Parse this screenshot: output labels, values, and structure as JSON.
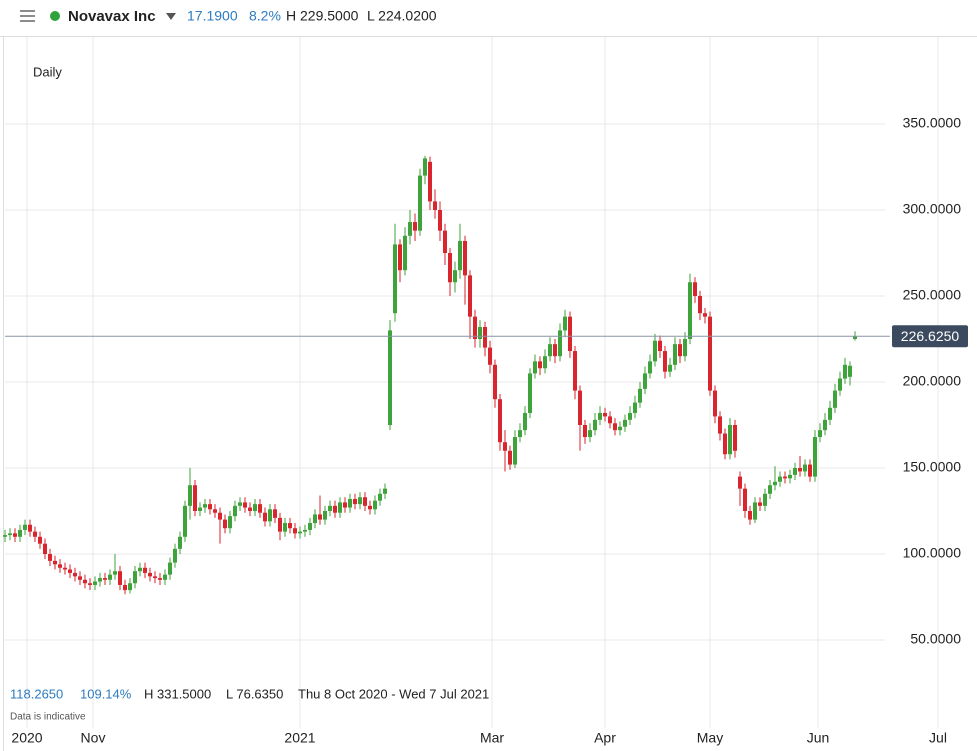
{
  "header": {
    "name": "Novavax Inc",
    "change": "17.1900",
    "change_pct": "8.2%",
    "high": "H 229.5000",
    "low": "L 224.0200"
  },
  "footer": {
    "period_change": "118.2650",
    "period_change_pct": "109.14%",
    "period_high": "H 331.5000",
    "period_low": "L 76.6350",
    "range": "Thu 8 Oct 2020 - Wed 7 Jul 2021",
    "note": "Data is indicative"
  },
  "chart_data": {
    "type": "candlestick",
    "interval": "Daily",
    "up_color": "#3ea33a",
    "down_color": "#d9262e",
    "ylim": [
      0,
      400
    ],
    "yticks": [
      {
        "value": 50,
        "label": "50.0000"
      },
      {
        "value": 100,
        "label": "100.0000"
      },
      {
        "value": 150,
        "label": "150.0000"
      },
      {
        "value": 200,
        "label": "200.0000"
      },
      {
        "value": 250,
        "label": "250.0000"
      },
      {
        "value": 300,
        "label": "300.0000"
      },
      {
        "value": 350,
        "label": "350.0000"
      }
    ],
    "xlim": [
      -1,
      194
    ],
    "xticks": [
      {
        "value": 4.4,
        "label": "2020"
      },
      {
        "value": 17.6,
        "label": "Nov"
      },
      {
        "value": 59,
        "label": "2021"
      },
      {
        "value": 97.4,
        "label": "Mar"
      },
      {
        "value": 120,
        "label": "Apr"
      },
      {
        "value": 141,
        "label": "May"
      },
      {
        "value": 162.6,
        "label": "Jun"
      },
      {
        "value": 186.6,
        "label": "Jul"
      }
    ],
    "last_price": 226.625,
    "last_price_label": "226.6250",
    "ohlc": [
      [
        110,
        114,
        107,
        111
      ],
      [
        111,
        115,
        108,
        112
      ],
      [
        112,
        115,
        107,
        110
      ],
      [
        110,
        117,
        107,
        114
      ],
      [
        114,
        120,
        111,
        117
      ],
      [
        117,
        120,
        110,
        113
      ],
      [
        113,
        116,
        107,
        110
      ],
      [
        110,
        113,
        103,
        106
      ],
      [
        106,
        109,
        97,
        100
      ],
      [
        100,
        103,
        93,
        96
      ],
      [
        96,
        99,
        91,
        94
      ],
      [
        94,
        97,
        89,
        92
      ],
      [
        92,
        95,
        88,
        91
      ],
      [
        91,
        94,
        86,
        89
      ],
      [
        89,
        92,
        84,
        87
      ],
      [
        87,
        90,
        82,
        85
      ],
      [
        85,
        88,
        80,
        83
      ],
      [
        83,
        86,
        79,
        82
      ],
      [
        82,
        87,
        79,
        84
      ],
      [
        84,
        89,
        81,
        86
      ],
      [
        86,
        89,
        82,
        85
      ],
      [
        85,
        91,
        82,
        88
      ],
      [
        88,
        100,
        85,
        90
      ],
      [
        90,
        93,
        79,
        82
      ],
      [
        82,
        85,
        76.635,
        79
      ],
      [
        79,
        86,
        77,
        83
      ],
      [
        83,
        93,
        80,
        90
      ],
      [
        90,
        95,
        87,
        92
      ],
      [
        92,
        95,
        86,
        89
      ],
      [
        89,
        92,
        84,
        87
      ],
      [
        87,
        90,
        83,
        86
      ],
      [
        86,
        89,
        82,
        85
      ],
      [
        85,
        91,
        82,
        88
      ],
      [
        88,
        98,
        85,
        95
      ],
      [
        95,
        106,
        92,
        103
      ],
      [
        103,
        113,
        100,
        110
      ],
      [
        110,
        131,
        107,
        128
      ],
      [
        128,
        150,
        120,
        140
      ],
      [
        140,
        143,
        122,
        125
      ],
      [
        125,
        130,
        122,
        127
      ],
      [
        127,
        132,
        124,
        129
      ],
      [
        129,
        132,
        123,
        126
      ],
      [
        126,
        129,
        121,
        124
      ],
      [
        124,
        127,
        106,
        120
      ],
      [
        120,
        123,
        112,
        115
      ],
      [
        115,
        125,
        112,
        122
      ],
      [
        122,
        131,
        119,
        128
      ],
      [
        128,
        133,
        125,
        130
      ],
      [
        130,
        133,
        124,
        127
      ],
      [
        127,
        130,
        122,
        125
      ],
      [
        125,
        132,
        122,
        129
      ],
      [
        129,
        132,
        121,
        124
      ],
      [
        124,
        127,
        116,
        119
      ],
      [
        119,
        129,
        116,
        126
      ],
      [
        126,
        129,
        118,
        121
      ],
      [
        121,
        124,
        108,
        113
      ],
      [
        113,
        121,
        110,
        118
      ],
      [
        118,
        121,
        112,
        115
      ],
      [
        115,
        118,
        109,
        112
      ],
      [
        112,
        116,
        109,
        113
      ],
      [
        113,
        117,
        110,
        114
      ],
      [
        114,
        121,
        111,
        118
      ],
      [
        118,
        126,
        115,
        123
      ],
      [
        123,
        134,
        117,
        120
      ],
      [
        120,
        128,
        117,
        125
      ],
      [
        125,
        131,
        122,
        128
      ],
      [
        128,
        131,
        121,
        124
      ],
      [
        124,
        133,
        121,
        130
      ],
      [
        130,
        133,
        124,
        127
      ],
      [
        127,
        135,
        124,
        132
      ],
      [
        132,
        135,
        126,
        129
      ],
      [
        129,
        136,
        126,
        133
      ],
      [
        133,
        136,
        125,
        128
      ],
      [
        128,
        131,
        123,
        126
      ],
      [
        126,
        134,
        123,
        131
      ],
      [
        131,
        138,
        128,
        135
      ],
      [
        135,
        141,
        132,
        138
      ],
      [
        175,
        236,
        172,
        230
      ],
      [
        240,
        292,
        235,
        280
      ],
      [
        280,
        283,
        258,
        265
      ],
      [
        265,
        290,
        262,
        285
      ],
      [
        285,
        300,
        280,
        293
      ],
      [
        293,
        298,
        282,
        288
      ],
      [
        288,
        324,
        285,
        320
      ],
      [
        320,
        331.5,
        315,
        330
      ],
      [
        328,
        331,
        300,
        305
      ],
      [
        305,
        312,
        295,
        300
      ],
      [
        300,
        305,
        282,
        288
      ],
      [
        288,
        292,
        268,
        275
      ],
      [
        275,
        278,
        250,
        258
      ],
      [
        258,
        270,
        252,
        265
      ],
      [
        265,
        292,
        260,
        282
      ],
      [
        282,
        285,
        245,
        262
      ],
      [
        262,
        265,
        225,
        238
      ],
      [
        238,
        242,
        220,
        225
      ],
      [
        225,
        236,
        220,
        232
      ],
      [
        232,
        235,
        215,
        220
      ],
      [
        220,
        224,
        205,
        210
      ],
      [
        210,
        213,
        185,
        190
      ],
      [
        190,
        193,
        160,
        165
      ],
      [
        165,
        172,
        148,
        160
      ],
      [
        160,
        163,
        149,
        152
      ],
      [
        152,
        172,
        150,
        168
      ],
      [
        168,
        176,
        165,
        172
      ],
      [
        172,
        186,
        169,
        182
      ],
      [
        182,
        208,
        179,
        205
      ],
      [
        205,
        216,
        202,
        212
      ],
      [
        212,
        215,
        204,
        208
      ],
      [
        208,
        219,
        205,
        215
      ],
      [
        215,
        226,
        212,
        222
      ],
      [
        222,
        225,
        211,
        215
      ],
      [
        215,
        234,
        212,
        230
      ],
      [
        230,
        242,
        226,
        238
      ],
      [
        238,
        241,
        214,
        218
      ],
      [
        218,
        221,
        190,
        195
      ],
      [
        195,
        198,
        160,
        175
      ],
      [
        175,
        178,
        164,
        168
      ],
      [
        168,
        176,
        165,
        172
      ],
      [
        172,
        182,
        169,
        178
      ],
      [
        178,
        186,
        175,
        182
      ],
      [
        182,
        185,
        177,
        180
      ],
      [
        180,
        183,
        173,
        176
      ],
      [
        176,
        179,
        169,
        172
      ],
      [
        172,
        177,
        169,
        174
      ],
      [
        174,
        181,
        171,
        178
      ],
      [
        178,
        186,
        175,
        182
      ],
      [
        182,
        192,
        179,
        188
      ],
      [
        188,
        200,
        185,
        196
      ],
      [
        196,
        209,
        193,
        205
      ],
      [
        205,
        216,
        202,
        212
      ],
      [
        212,
        228,
        209,
        224
      ],
      [
        224,
        227,
        214,
        218
      ],
      [
        218,
        221,
        202,
        206
      ],
      [
        206,
        214,
        203,
        210
      ],
      [
        210,
        226,
        207,
        222
      ],
      [
        222,
        225,
        211,
        215
      ],
      [
        215,
        229,
        212,
        225
      ],
      [
        225,
        263,
        222,
        258
      ],
      [
        258,
        261,
        246,
        250
      ],
      [
        250,
        253,
        236,
        240
      ],
      [
        240,
        243,
        234,
        238
      ],
      [
        238,
        241,
        192,
        195
      ],
      [
        195,
        198,
        176,
        180
      ],
      [
        180,
        183,
        166,
        170
      ],
      [
        170,
        173,
        155,
        158
      ],
      [
        158,
        179,
        155,
        175
      ],
      [
        175,
        178,
        156,
        160
      ],
      [
        145,
        148,
        128,
        138
      ],
      [
        138,
        141,
        121,
        125
      ],
      [
        125,
        128,
        117,
        120
      ],
      [
        120,
        133,
        118,
        130
      ],
      [
        130,
        133,
        125,
        128
      ],
      [
        128,
        138,
        125,
        135
      ],
      [
        135,
        143,
        132,
        140
      ],
      [
        140,
        151,
        137,
        142
      ],
      [
        142,
        148,
        139,
        145
      ],
      [
        145,
        148,
        141,
        144
      ],
      [
        144,
        149,
        141,
        146
      ],
      [
        146,
        153,
        143,
        150
      ],
      [
        150,
        157,
        145,
        148
      ],
      [
        148,
        155,
        145,
        152
      ],
      [
        152,
        155,
        142,
        145
      ],
      [
        145,
        172,
        142,
        168
      ],
      [
        168,
        176,
        165,
        172
      ],
      [
        172,
        182,
        169,
        178
      ],
      [
        178,
        189,
        175,
        185
      ],
      [
        185,
        199,
        182,
        195
      ],
      [
        195,
        206,
        192,
        202
      ],
      [
        202,
        214,
        199,
        210
      ],
      [
        203,
        212,
        198,
        209.435
      ],
      [
        225,
        229.5,
        224.02,
        226.625
      ]
    ]
  }
}
